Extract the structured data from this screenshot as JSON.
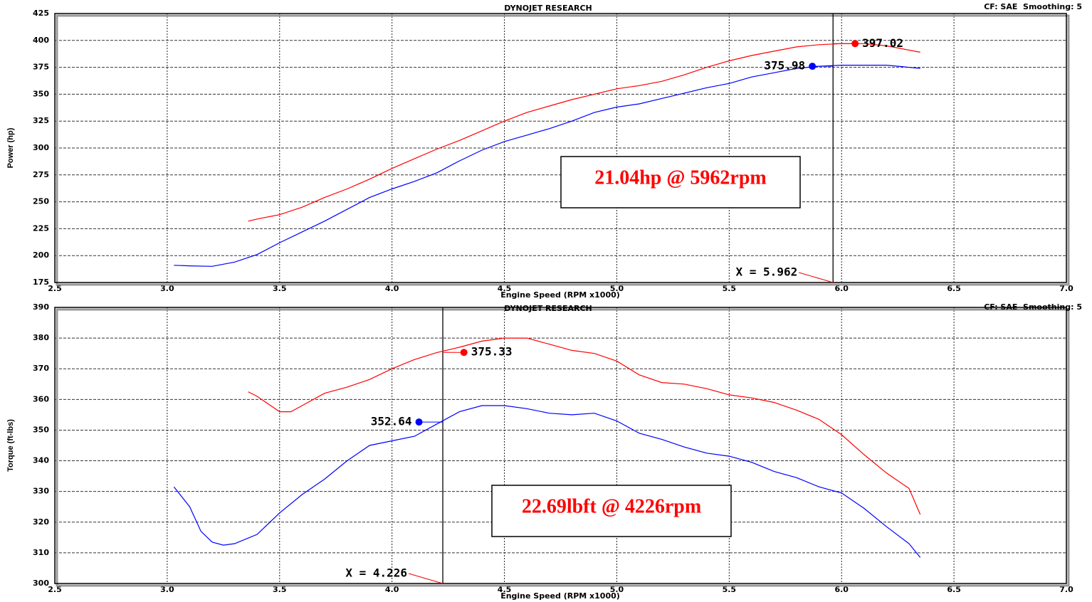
{
  "chart_data": [
    {
      "type": "line",
      "title": "DYNOJET RESEARCH",
      "subtitle": "CF: SAE  Smoothing: 5",
      "x_label": "Engine Speed (RPM x1000)",
      "y_label": "Power (hp)",
      "xlim": [
        2.5,
        7.0
      ],
      "xticks": [
        2.5,
        {
          "value": 3,
          "label": "3.0"
        },
        3.5,
        {
          "value": 4,
          "label": "4.0"
        },
        4.5,
        {
          "value": 5,
          "label": "5.0"
        },
        5.5,
        {
          "value": 6,
          "label": "6.0"
        },
        6.5,
        {
          "value": 7,
          "label": "7.0"
        }
      ],
      "ylim": [
        175,
        425
      ],
      "yticks": [
        175,
        200,
        225,
        250,
        275,
        300,
        325,
        350,
        375,
        400,
        425
      ],
      "grid": true,
      "series": [
        {
          "color": "#ff0000",
          "x": [
            3.36,
            3.4,
            3.5,
            3.6,
            3.7,
            3.8,
            3.9,
            4.0,
            4.1,
            4.2,
            4.3,
            4.4,
            4.5,
            4.6,
            4.7,
            4.8,
            4.9,
            5.0,
            5.1,
            5.2,
            5.3,
            5.4,
            5.5,
            5.6,
            5.7,
            5.8,
            5.9,
            6.0,
            6.05,
            6.1,
            6.2,
            6.35
          ],
          "values": [
            232,
            234,
            238,
            245,
            254,
            262,
            271,
            281,
            290,
            299,
            307,
            316,
            325,
            333,
            339,
            345,
            350,
            355,
            358,
            362,
            368,
            375,
            381,
            386,
            390,
            394,
            396,
            397,
            397,
            397,
            395,
            389
          ],
          "peak": {
            "x": 6.06,
            "value": 397.02
          }
        },
        {
          "color": "#0000ff",
          "x": [
            3.03,
            3.1,
            3.2,
            3.3,
            3.4,
            3.5,
            3.6,
            3.7,
            3.8,
            3.9,
            4.0,
            4.1,
            4.2,
            4.3,
            4.4,
            4.5,
            4.6,
            4.7,
            4.8,
            4.9,
            5.0,
            5.1,
            5.2,
            5.3,
            5.4,
            5.5,
            5.6,
            5.7,
            5.8,
            5.9,
            6.0,
            6.1,
            6.2,
            6.35
          ],
          "values": [
            191,
            190.5,
            190,
            194,
            201,
            212,
            222,
            232,
            243,
            254,
            262,
            269,
            277,
            288,
            298,
            306,
            312,
            318,
            325,
            333,
            338,
            341,
            346,
            351,
            356,
            360,
            366,
            370,
            374,
            376,
            377,
            377,
            377,
            374
          ],
          "peak": {
            "x": 5.87,
            "value": 375.98
          }
        }
      ],
      "cursor": {
        "x": 5.962,
        "label": "X = 5.962"
      },
      "annotation": "21.04hp @ 5962rpm"
    },
    {
      "type": "line",
      "title": "DYNOJET RESEARCH",
      "subtitle": "CF: SAE  Smoothing: 5",
      "x_label": "Engine Speed (RPM x1000)",
      "y_label": "Torque (ft-lbs)",
      "xlim": [
        2.5,
        7.0
      ],
      "xticks": [
        2.5,
        {
          "value": 3,
          "label": "3.0"
        },
        3.5,
        {
          "value": 4,
          "label": "4.0"
        },
        4.5,
        {
          "value": 5,
          "label": "5.0"
        },
        5.5,
        {
          "value": 6,
          "label": "6.0"
        },
        6.5,
        {
          "value": 7,
          "label": "7.0"
        }
      ],
      "ylim": [
        300,
        390
      ],
      "yticks": [
        300,
        310,
        320,
        330,
        340,
        350,
        360,
        370,
        380,
        390
      ],
      "grid": true,
      "series": [
        {
          "color": "#ff0000",
          "x": [
            3.36,
            3.4,
            3.5,
            3.55,
            3.6,
            3.7,
            3.8,
            3.9,
            4.0,
            4.1,
            4.2,
            4.3,
            4.4,
            4.5,
            4.6,
            4.7,
            4.8,
            4.9,
            5.0,
            5.1,
            5.2,
            5.3,
            5.4,
            5.5,
            5.6,
            5.7,
            5.8,
            5.9,
            6.0,
            6.1,
            6.2,
            6.3,
            6.35
          ],
          "values": [
            362.5,
            361,
            356,
            356,
            358,
            362,
            364,
            366.5,
            370,
            373,
            375.3,
            377,
            379,
            380,
            380,
            378,
            376,
            375,
            372.5,
            368,
            365.5,
            365,
            363.5,
            361.5,
            360.5,
            359,
            356.5,
            353.5,
            348.5,
            342,
            336,
            331,
            322.5
          ],
          "peak": {
            "x": 4.32,
            "value": 375.33
          }
        },
        {
          "color": "#0000ff",
          "x": [
            3.03,
            3.1,
            3.15,
            3.2,
            3.25,
            3.3,
            3.4,
            3.5,
            3.6,
            3.7,
            3.8,
            3.9,
            4.0,
            4.1,
            4.2,
            4.3,
            4.4,
            4.5,
            4.6,
            4.7,
            4.8,
            4.9,
            5.0,
            5.1,
            5.2,
            5.3,
            5.4,
            5.5,
            5.6,
            5.7,
            5.8,
            5.9,
            6.0,
            6.1,
            6.2,
            6.3,
            6.35
          ],
          "values": [
            331.5,
            325,
            317,
            313.5,
            312.5,
            313,
            316,
            323,
            329,
            334,
            340,
            345,
            346.5,
            348,
            352,
            356,
            358,
            358,
            357,
            355.5,
            355,
            355.5,
            353,
            349,
            347,
            344.5,
            342.5,
            341.5,
            339.5,
            336.5,
            334.5,
            331.5,
            329.5,
            324.5,
            318.5,
            313,
            308.5
          ],
          "peak": {
            "x": 4.12,
            "value": 352.64
          }
        }
      ],
      "cursor": {
        "x": 4.226,
        "label": "X = 4.226"
      },
      "annotation": "22.69lbft @ 4226rpm"
    }
  ]
}
